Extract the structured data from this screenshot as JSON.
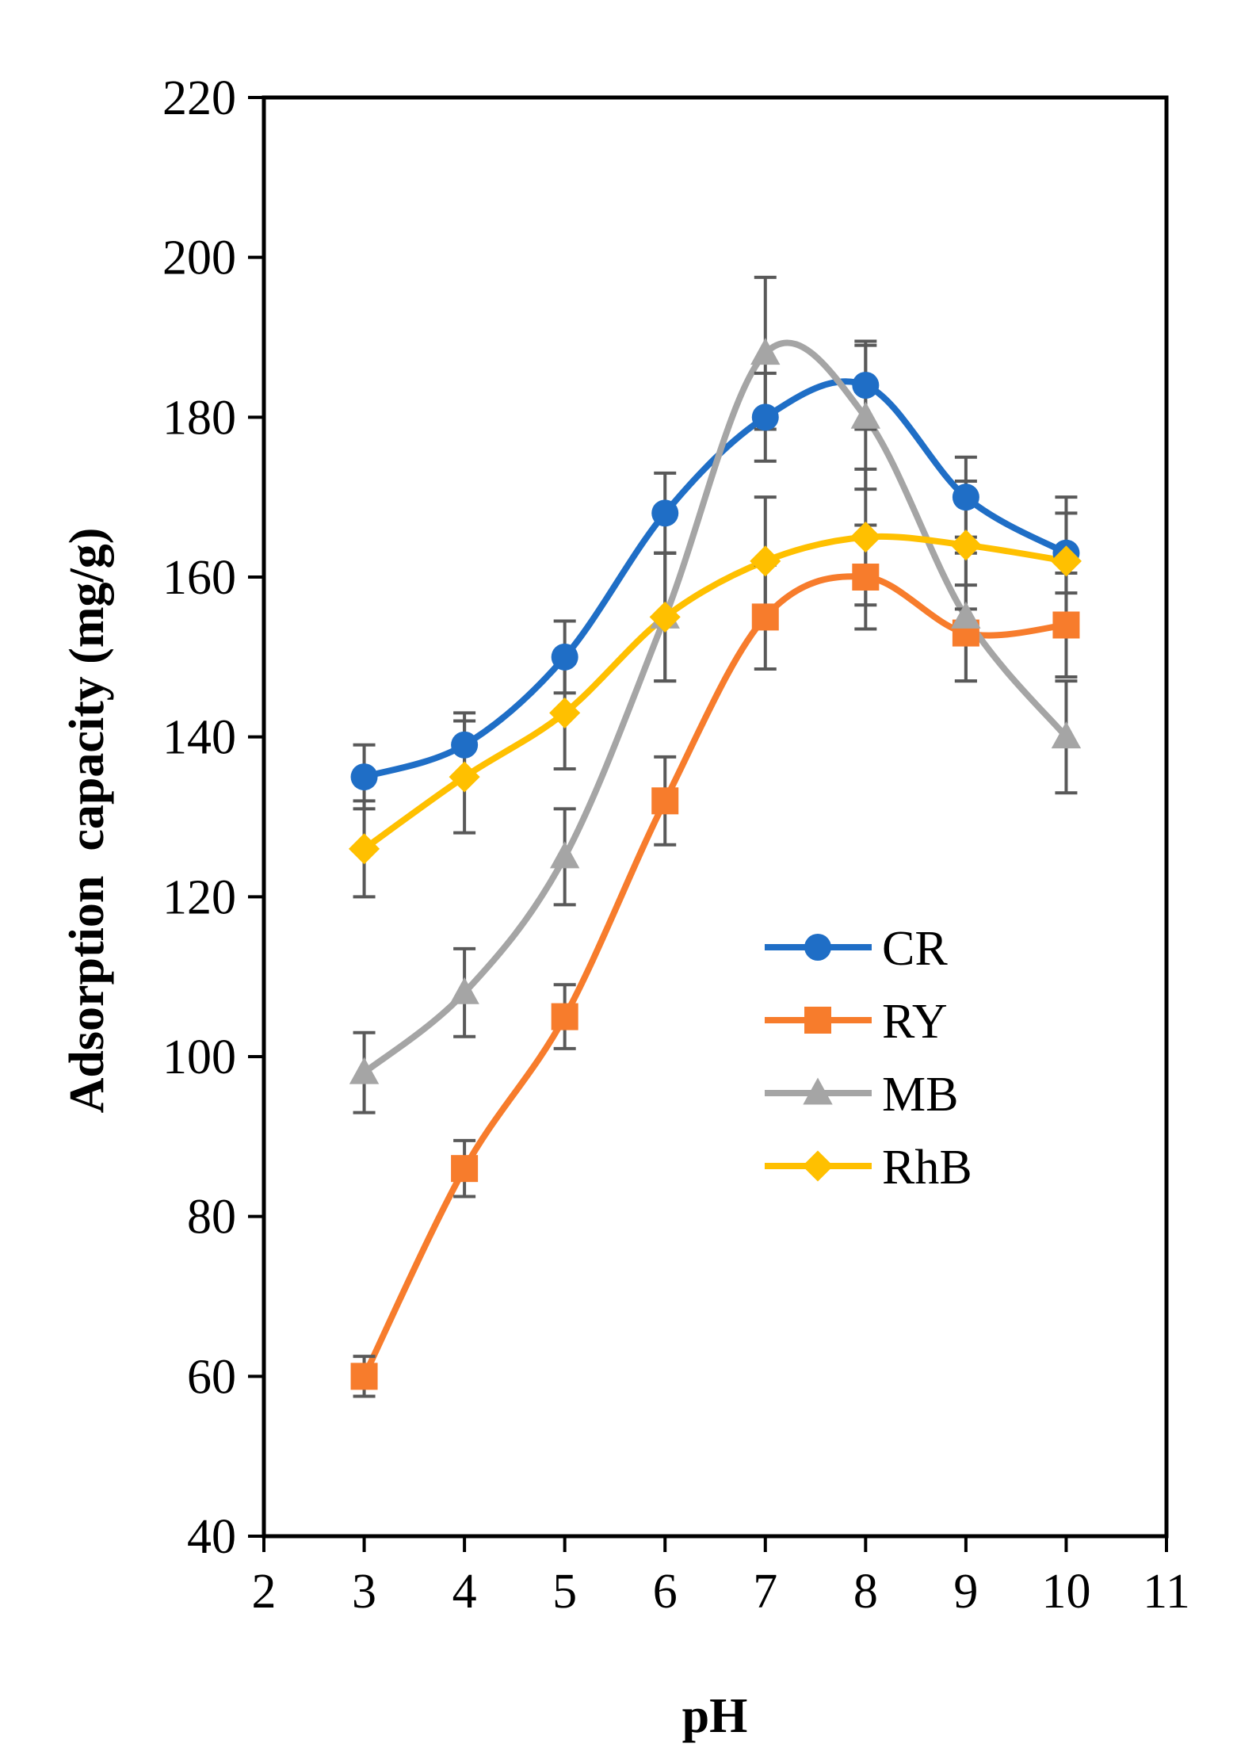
{
  "chart_data": {
    "type": "line",
    "title": "",
    "xlabel": "pH",
    "ylabel": "Adsorption  capacity (mg/g)",
    "xlim": [
      2,
      11
    ],
    "ylim": [
      40,
      220
    ],
    "xticks": [
      2,
      3,
      4,
      5,
      6,
      7,
      8,
      9,
      10,
      11
    ],
    "yticks": [
      40,
      60,
      80,
      100,
      120,
      140,
      160,
      180,
      200,
      220
    ],
    "grid": false,
    "legend_position": "middle-right",
    "smoothed": true,
    "x": [
      3,
      4,
      5,
      6,
      7,
      8,
      9,
      10
    ],
    "series": [
      {
        "name": "CR",
        "color": "#1F6EC6",
        "marker": "circle",
        "values": [
          135,
          139,
          150,
          168,
          180,
          184,
          170,
          163
        ],
        "errors": [
          4,
          4,
          4.5,
          5,
          5.5,
          5.5,
          5,
          5
        ]
      },
      {
        "name": "RY",
        "color": "#F77C2C",
        "marker": "square",
        "values": [
          60,
          86,
          105,
          132,
          155,
          160,
          153,
          154
        ],
        "errors": [
          2.5,
          3.5,
          4,
          5.5,
          6.5,
          6.5,
          6,
          6.5
        ]
      },
      {
        "name": "MB",
        "color": "#A5A5A5",
        "marker": "triangle",
        "values": [
          98,
          108,
          125,
          155,
          188,
          180,
          155,
          140
        ],
        "errors": [
          5,
          5.5,
          6,
          8,
          9.5,
          9,
          8,
          7
        ]
      },
      {
        "name": "RhB",
        "color": "#FFC000",
        "marker": "diamond",
        "values": [
          126,
          135,
          143,
          155,
          162,
          165,
          164,
          162
        ],
        "errors": [
          6,
          7,
          7,
          8,
          8,
          8.5,
          8,
          8
        ]
      }
    ]
  }
}
